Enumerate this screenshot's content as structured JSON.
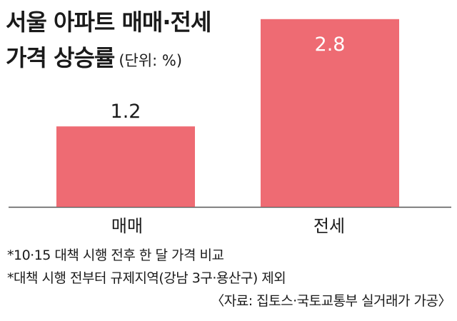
{
  "title_line1": "서울 아파트 매매·전세",
  "title_line2": "가격 상승률",
  "unit": "(단위: %)",
  "chart_data": {
    "type": "bar",
    "categories": [
      "매매",
      "전세"
    ],
    "values": [
      1.2,
      2.8
    ],
    "value_labels": [
      "1.2",
      "2.8"
    ],
    "title": "서울 아파트 매매·전세 가격 상승률",
    "unit": "(단위: %)",
    "xlabel": "",
    "ylabel": "",
    "grid": false,
    "legend": "none",
    "bar_color": "#ee6b73",
    "value_label_colors": [
      "#1a1a1a",
      "#ffffff"
    ]
  },
  "notes": [
    "*10·15 대책 시행 전후 한 달 가격 비교",
    "*대책 시행 전부터 규제지역(강남 3구·용산구) 제외"
  ],
  "source": "〈자료: 집토스·국토교통부 실거래가 가공〉"
}
